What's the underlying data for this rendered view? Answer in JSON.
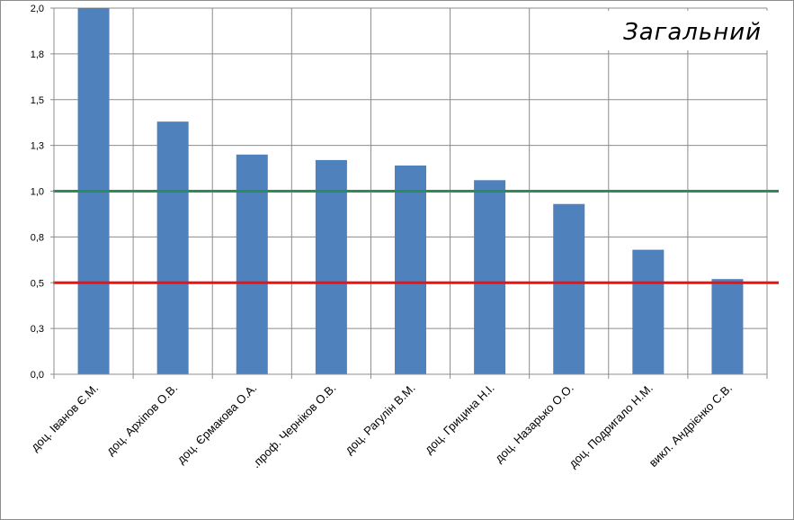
{
  "chart_data": {
    "type": "bar",
    "title": "Загальний",
    "categories": [
      "доц. Іванов Є.М.",
      "доц. Архіпов О.В.",
      "доц. Єрмакова О.А.",
      ".проф. Черніков О.В.",
      "доц. Рагулін В.М.",
      "доц. Грицина Н.І.",
      "доц. Назарько О.О.",
      "доц. Подригало Н.М.",
      "викл. Андрієнко С.В."
    ],
    "values": [
      2.0,
      1.38,
      1.2,
      1.17,
      1.14,
      1.06,
      0.93,
      0.68,
      0.52
    ],
    "ylim": [
      0,
      2.0
    ],
    "yticks": [
      "0,0",
      "0,3",
      "0,5",
      "0,8",
      "1,0",
      "1,3",
      "1,5",
      "1,8",
      "2,0"
    ],
    "bar_color": "#4f81bd",
    "reference_lines": [
      {
        "value": 1.0,
        "color": "#2e8b57"
      },
      {
        "value": 0.5,
        "color": "#ee1111"
      }
    ],
    "grid": true,
    "xlabel": "",
    "ylabel": ""
  }
}
